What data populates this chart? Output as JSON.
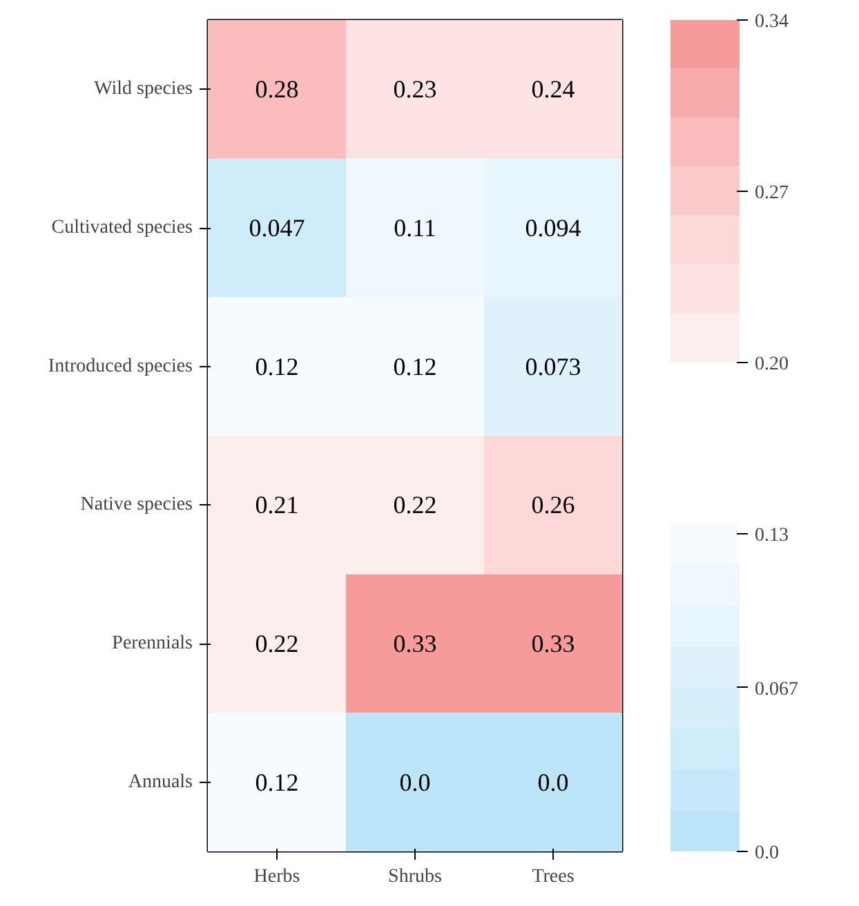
{
  "chart_data": {
    "type": "heatmap",
    "categories": [
      "Herbs",
      "Shrubs",
      "Trees"
    ],
    "y_categories": [
      "Wild species",
      "Cultivated species",
      "Introduced species",
      "Native species",
      "Perennials",
      "Annuals"
    ],
    "cells": [
      [
        0.28,
        0.23,
        0.24
      ],
      [
        0.047,
        0.11,
        0.094
      ],
      [
        0.12,
        0.12,
        0.073
      ],
      [
        0.21,
        0.22,
        0.26
      ],
      [
        0.22,
        0.33,
        0.33
      ],
      [
        0.12,
        0.0,
        0.0
      ]
    ],
    "cell_labels": [
      [
        "0.28",
        "0.23",
        "0.24"
      ],
      [
        "0.047",
        "0.11",
        "0.094"
      ],
      [
        "0.12",
        "0.12",
        "0.073"
      ],
      [
        "0.21",
        "0.22",
        "0.26"
      ],
      [
        "0.22",
        "0.33",
        "0.33"
      ],
      [
        "0.12",
        "0.0",
        "0.0"
      ]
    ],
    "clim": [
      0.0,
      0.34
    ],
    "cticks": [
      {
        "value": 0,
        "label": "0.0"
      },
      {
        "value": 0.067,
        "label": "0.067"
      },
      0.13,
      {
        "value": 0.2,
        "label": "0.20"
      },
      0.27,
      0.34
    ]
  }
}
